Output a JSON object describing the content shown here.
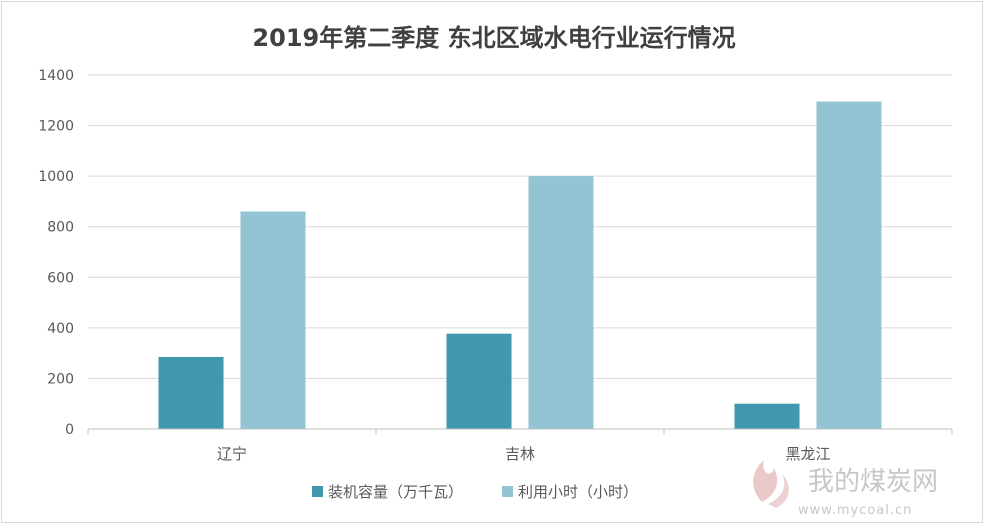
{
  "chart_data": {
    "type": "bar",
    "title": "2019年第二季度 东北区域水电行业运行情况",
    "categories": [
      "辽宁",
      "吉林",
      "黑龙江"
    ],
    "series": [
      {
        "name": "装机容量（万千瓦）",
        "values": [
          285,
          377,
          100
        ],
        "color": "#4197ae"
      },
      {
        "name": "利用小时（小时）",
        "values": [
          860,
          1000,
          1295
        ],
        "color": "#93c4d4"
      }
    ],
    "y_ticks": [
      0,
      200,
      400,
      600,
      800,
      1000,
      1200,
      1400
    ],
    "ylim": [
      0,
      1400
    ],
    "grid": true,
    "legend_position": "bottom"
  },
  "watermark": {
    "text": "我的煤炭网",
    "url": "www.mycoal.cn"
  }
}
